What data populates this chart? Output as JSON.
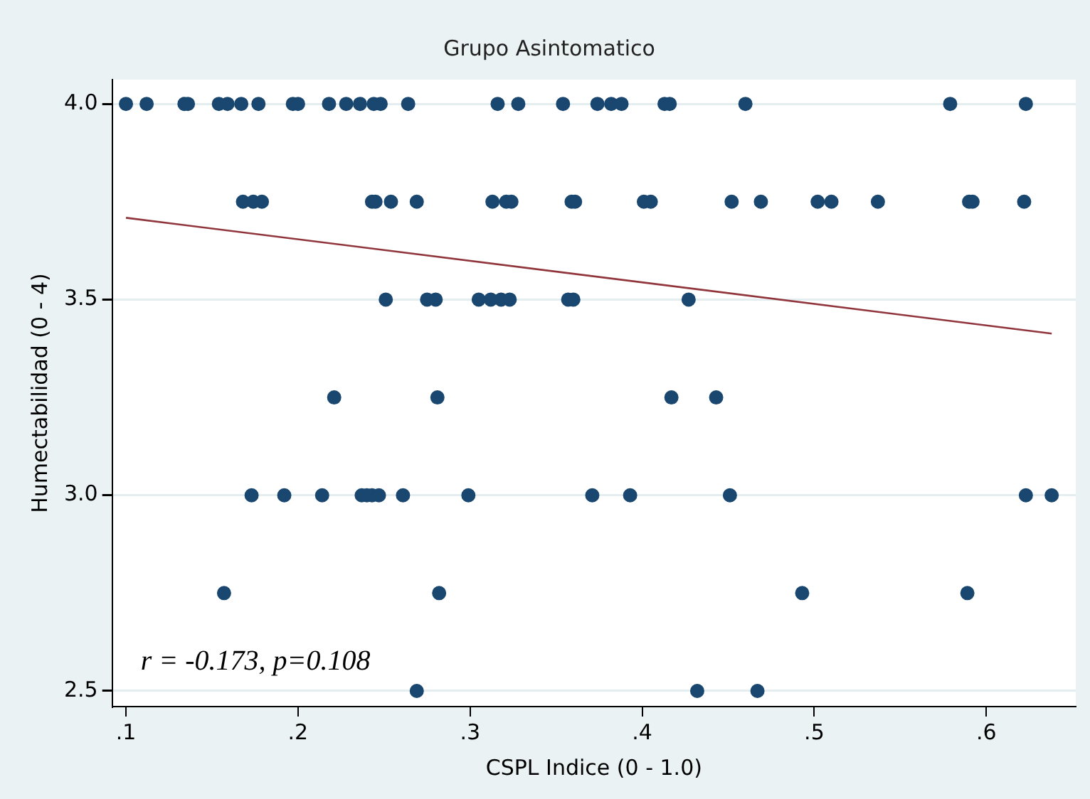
{
  "chart_data": {
    "type": "scatter",
    "title": "Grupo Asintomatico",
    "xlabel": "CSPL Indice (0 - 1.0)",
    "ylabel": "Humectabilidad (0 - 4)",
    "annotations": [
      "r = -0.173, p=0.108"
    ],
    "series": [
      {
        "color": "#1a476f",
        "marker": "circle",
        "x": [
          0.1,
          0.112,
          0.134,
          0.136,
          0.154,
          0.159,
          0.167,
          0.177,
          0.197,
          0.2,
          0.218,
          0.228,
          0.236,
          0.244,
          0.248,
          0.264,
          0.316,
          0.328,
          0.354,
          0.374,
          0.382,
          0.388,
          0.413,
          0.416,
          0.46,
          0.579,
          0.623,
          0.168,
          0.174,
          0.179,
          0.243,
          0.245,
          0.254,
          0.269,
          0.313,
          0.321,
          0.324,
          0.359,
          0.361,
          0.401,
          0.405,
          0.452,
          0.469,
          0.502,
          0.51,
          0.537,
          0.59,
          0.592,
          0.622,
          0.251,
          0.275,
          0.28,
          0.305,
          0.312,
          0.318,
          0.323,
          0.357,
          0.36,
          0.427,
          0.221,
          0.281,
          0.417,
          0.443,
          0.173,
          0.192,
          0.214,
          0.237,
          0.24,
          0.243,
          0.247,
          0.261,
          0.299,
          0.371,
          0.393,
          0.451,
          0.623,
          0.638,
          0.157,
          0.282,
          0.493,
          0.589,
          0.269,
          0.432,
          0.467
        ],
        "values": [
          4,
          4,
          4,
          4,
          4,
          4,
          4,
          4,
          4,
          4,
          4,
          4,
          4,
          4,
          4,
          4,
          4,
          4,
          4,
          4,
          4,
          4,
          4,
          4,
          4,
          4,
          4,
          3.75,
          3.75,
          3.75,
          3.75,
          3.75,
          3.75,
          3.75,
          3.75,
          3.75,
          3.75,
          3.75,
          3.75,
          3.75,
          3.75,
          3.75,
          3.75,
          3.75,
          3.75,
          3.75,
          3.75,
          3.75,
          3.75,
          3.5,
          3.5,
          3.5,
          3.5,
          3.5,
          3.5,
          3.5,
          3.5,
          3.5,
          3.5,
          3.25,
          3.25,
          3.25,
          3.25,
          3,
          3,
          3,
          3,
          3,
          3,
          3,
          3,
          3,
          3,
          3,
          3,
          3,
          3,
          2.75,
          2.75,
          2.75,
          2.75,
          2.5,
          2.5,
          2.5
        ]
      },
      {
        "type": "line",
        "color": "#90353b",
        "marker": "none",
        "x": [
          0.1,
          0.638
        ],
        "values": [
          3.709,
          3.413
        ]
      }
    ],
    "xlim": [
      0.092,
      0.652
    ],
    "ylim": [
      2.46,
      4.062
    ],
    "xticks": [
      {
        "value": 0.1,
        "label": ".1"
      },
      {
        "value": 0.2,
        "label": ".2"
      },
      {
        "value": 0.3,
        "label": ".3"
      },
      {
        "value": 0.4,
        "label": ".4"
      },
      {
        "value": 0.5,
        "label": ".5"
      },
      {
        "value": 0.6,
        "label": ".6"
      }
    ],
    "yticks": [
      {
        "value": 2.5,
        "label": "2.5"
      },
      {
        "value": 3,
        "label": "3.0"
      },
      {
        "value": 3.5,
        "label": "3.5"
      },
      {
        "value": 4,
        "label": "4.0"
      }
    ],
    "grid": "y",
    "legend": false
  }
}
